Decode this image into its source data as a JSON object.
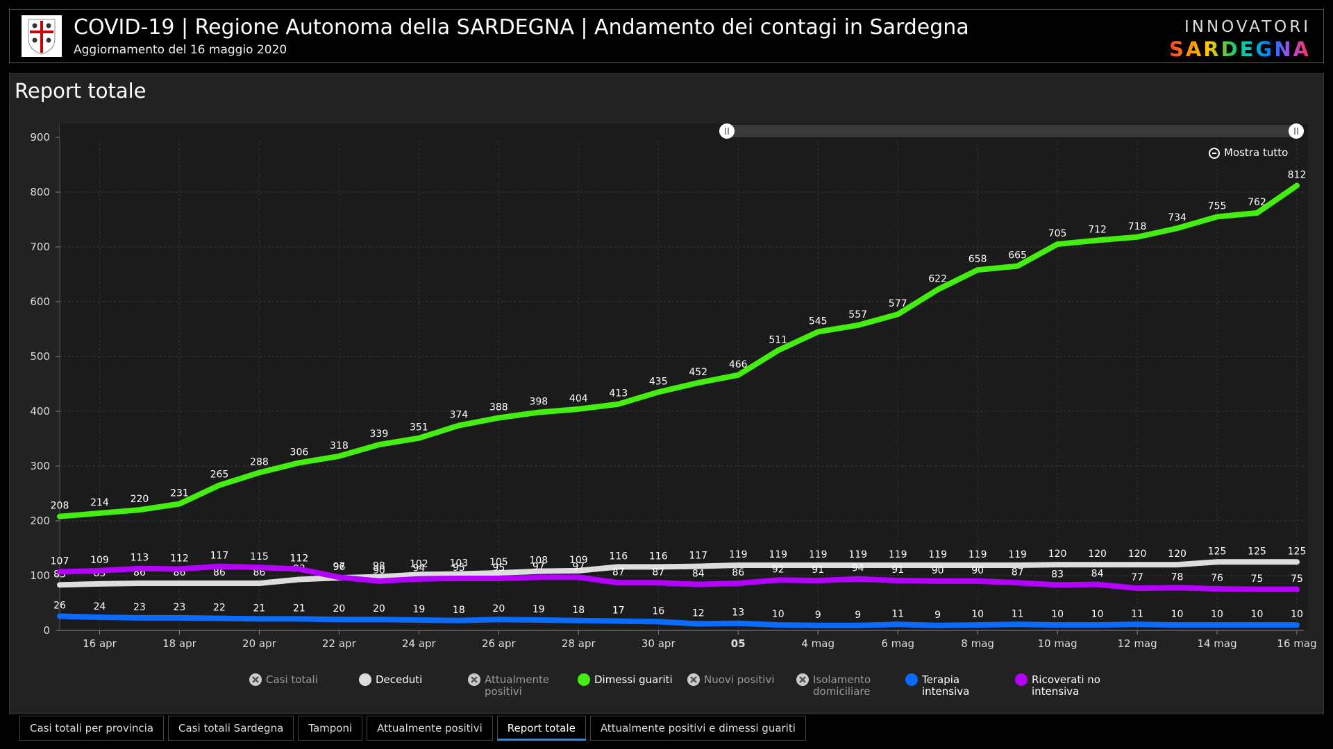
{
  "header": {
    "title": "COVID-19 | Regione Autonoma della SARDEGNA | Andamento dei contagi in Sardegna",
    "subtitle": "Aggiornamento del 16 maggio 2020",
    "brand_top": "INNOVATORI",
    "brand_bottom": "SARDEGNA"
  },
  "panel": {
    "title": "Report totale",
    "zoom_label": "Mostra tutto"
  },
  "tabs": [
    {
      "label": "Casi totali per provincia",
      "active": false
    },
    {
      "label": "Casi totali Sardegna",
      "active": false
    },
    {
      "label": "Tamponi",
      "active": false
    },
    {
      "label": "Attualmente positivi",
      "active": false
    },
    {
      "label": "Report totale",
      "active": true
    },
    {
      "label": "Attualmente positivi e dimessi guariti",
      "active": false
    }
  ],
  "legend": [
    {
      "label": "Casi totali",
      "color": "#cccccc",
      "enabled": false
    },
    {
      "label": "Deceduti",
      "color": "#dddddd",
      "enabled": true
    },
    {
      "label": "Attualmente positivi",
      "color": "#cccccc",
      "enabled": false
    },
    {
      "label": "Dimessi guariti",
      "color": "#44ee11",
      "enabled": true
    },
    {
      "label": "Nuovi positivi",
      "color": "#cccccc",
      "enabled": false
    },
    {
      "label": "Isolamento domiciliare",
      "color": "#cccccc",
      "enabled": false
    },
    {
      "label": "Terapia intensiva",
      "color": "#0a6cff",
      "enabled": true
    },
    {
      "label": "Ricoverati no intensiva",
      "color": "#b400ff",
      "enabled": true
    }
  ],
  "chart_data": {
    "type": "line",
    "ylim": [
      0,
      900
    ],
    "yticks": [
      0,
      100,
      200,
      300,
      400,
      500,
      600,
      700,
      800,
      900
    ],
    "x": [
      "15 apr",
      "16 apr",
      "17 apr",
      "18 apr",
      "19 apr",
      "20 apr",
      "21 apr",
      "22 apr",
      "23 apr",
      "24 apr",
      "25 apr",
      "26 apr",
      "27 apr",
      "28 apr",
      "29 apr",
      "30 apr",
      "1 mag",
      "2 mag",
      "3 mag",
      "4 mag",
      "5 mag",
      "6 mag",
      "7 mag",
      "8 mag",
      "9 mag",
      "10 mag",
      "11 mag",
      "12 mag",
      "13 mag",
      "14 mag",
      "15 mag",
      "16 mag"
    ],
    "xtick_labels": [
      "16 apr",
      "18 apr",
      "20 apr",
      "22 apr",
      "24 apr",
      "26 apr",
      "28 apr",
      "30 apr",
      "05",
      "4 mag",
      "6 mag",
      "8 mag",
      "10 mag",
      "12 mag",
      "14 mag",
      "16 mag"
    ],
    "grid": true,
    "series": [
      {
        "name": "Dimessi guariti",
        "color": "#44ee11",
        "values": [
          208,
          214,
          220,
          231,
          265,
          288,
          306,
          318,
          339,
          351,
          374,
          388,
          398,
          404,
          413,
          435,
          452,
          466,
          511,
          545,
          557,
          577,
          622,
          658,
          665,
          705,
          712,
          718,
          734,
          755,
          762,
          812
        ]
      },
      {
        "name": "Deceduti",
        "color": "#dddddd",
        "values": [
          83,
          85,
          86,
          86,
          86,
          86,
          93,
          96,
          98,
          102,
          103,
          105,
          108,
          109,
          116,
          116,
          117,
          119,
          119,
          119,
          119,
          119,
          119,
          119,
          119,
          120,
          120,
          120,
          120,
          125,
          125,
          125
        ]
      },
      {
        "name": "Ricoverati no intensiva",
        "color": "#b400ff",
        "values": [
          107,
          109,
          113,
          112,
          117,
          115,
          112,
          97,
          90,
          94,
          95,
          95,
          97,
          97,
          87,
          87,
          84,
          86,
          92,
          91,
          94,
          91,
          90,
          90,
          87,
          83,
          84,
          77,
          78,
          76,
          75,
          75
        ]
      },
      {
        "name": "Terapia intensiva",
        "color": "#0a6cff",
        "values": [
          26,
          24,
          23,
          23,
          22,
          21,
          21,
          20,
          20,
          19,
          18,
          20,
          19,
          18,
          17,
          16,
          12,
          13,
          10,
          9,
          9,
          11,
          9,
          10,
          11,
          10,
          10,
          11,
          10,
          10,
          10,
          10
        ]
      }
    ]
  }
}
